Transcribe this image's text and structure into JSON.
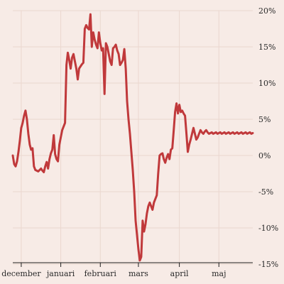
{
  "chart_data": {
    "type": "line",
    "title": "",
    "xlabel": "",
    "ylabel": "",
    "grid": true,
    "y_axis_side": "right",
    "ylim": [
      -15,
      20
    ],
    "xlim": [
      0,
      170
    ],
    "yticks": [
      20,
      15,
      10,
      5,
      0,
      -5,
      -10,
      -15
    ],
    "ytick_labels": [
      "20%",
      "15%",
      "10%",
      "5%",
      "0%",
      "-5%",
      "-10%",
      "-15%"
    ],
    "xticks": [
      {
        "label": "december",
        "x": 6
      },
      {
        "label": "januari",
        "x": 34
      },
      {
        "label": "februari",
        "x": 62
      },
      {
        "label": "mars",
        "x": 89
      },
      {
        "label": "april",
        "x": 118
      },
      {
        "label": "maj",
        "x": 146
      }
    ],
    "series": [
      {
        "color": "#c0393b",
        "x": [
          0,
          1,
          2,
          3,
          4,
          5,
          6,
          7,
          8,
          9,
          10,
          11,
          12,
          13,
          14,
          15,
          16,
          17,
          18,
          19,
          20,
          21,
          22,
          23,
          24,
          25,
          26,
          27,
          28,
          29,
          30,
          31,
          32,
          33,
          34,
          35,
          36,
          37,
          38,
          39,
          40,
          41,
          42,
          43,
          44,
          45,
          46,
          47,
          48,
          49,
          50,
          51,
          52,
          53,
          54,
          55,
          56,
          57,
          58,
          59,
          60,
          61,
          62,
          63,
          64,
          65,
          66,
          67,
          68,
          69,
          70,
          71,
          72,
          73,
          74,
          75,
          76,
          77,
          78,
          79,
          80,
          81,
          82,
          83,
          84,
          85,
          86,
          87,
          88,
          89,
          90,
          91,
          92,
          93,
          94,
          95,
          96,
          97,
          98,
          99,
          100,
          101,
          102,
          103,
          104,
          105,
          106,
          107,
          108,
          109,
          110,
          111,
          112,
          113,
          114,
          115,
          116,
          117,
          118,
          119,
          120,
          121,
          122,
          123,
          124,
          125,
          126,
          127,
          128,
          129,
          130,
          131,
          132,
          133,
          134,
          135,
          136,
          137,
          138,
          139,
          140,
          141,
          142,
          143,
          144,
          145,
          146,
          147,
          148,
          149,
          150,
          151,
          152,
          153,
          154,
          155,
          156,
          157,
          158,
          159,
          160,
          161,
          162,
          163,
          164,
          165,
          166,
          167,
          168,
          169,
          170
        ],
        "values": [
          0.0,
          -1.2,
          -1.5,
          -0.8,
          0.5,
          2.0,
          3.8,
          4.5,
          5.5,
          6.2,
          5.0,
          3.0,
          1.5,
          0.8,
          1.0,
          -1.5,
          -2.0,
          -2.1,
          -2.2,
          -2.0,
          -1.8,
          -2.1,
          -2.3,
          -1.5,
          -0.9,
          -1.8,
          -0.5,
          0.3,
          0.8,
          2.8,
          0.2,
          -0.5,
          -0.8,
          1.5,
          2.5,
          3.5,
          4.0,
          4.5,
          12.5,
          14.2,
          13.2,
          12.0,
          13.5,
          14.0,
          13.0,
          12.0,
          10.5,
          12.0,
          12.3,
          12.6,
          12.8,
          17.5,
          18.0,
          17.6,
          17.4,
          19.5,
          15.0,
          17.0,
          16.0,
          15.3,
          14.8,
          17.0,
          15.5,
          14.5,
          14.8,
          8.5,
          15.5,
          15.0,
          14.0,
          13.0,
          12.5,
          14.8,
          15.0,
          15.3,
          14.5,
          14.0,
          12.5,
          12.8,
          13.2,
          14.7,
          12.0,
          7.5,
          5.0,
          3.0,
          0.5,
          -2.0,
          -5.0,
          -9.0,
          -11.0,
          -13.0,
          -14.5,
          -14.0,
          -9.0,
          -10.5,
          -9.5,
          -8.0,
          -7.0,
          -6.5,
          -7.0,
          -7.5,
          -6.5,
          -6.0,
          -5.5,
          -2.5,
          0.0,
          0.2,
          0.3,
          -0.5,
          -1.0,
          -0.3,
          0.2,
          -0.5,
          0.8,
          1.0,
          3.5,
          6.0,
          7.2,
          5.8,
          7.0,
          6.0,
          6.2,
          5.8,
          5.5,
          3.0,
          0.5,
          1.5,
          2.2,
          3.0,
          3.8,
          3.0,
          2.2,
          2.5,
          3.0,
          3.5,
          3.2,
          3.0,
          3.3,
          3.5,
          3.2,
          3.0,
          3.1,
          3.2,
          3.0,
          3.1,
          3.2,
          3.0,
          3.1,
          3.2,
          3.0,
          3.1,
          3.2,
          3.0,
          3.1,
          3.2,
          3.0,
          3.1,
          3.2,
          3.0,
          3.1,
          3.2,
          3.0,
          3.1,
          3.2,
          3.0,
          3.1,
          3.2,
          3.0,
          3.1,
          3.2,
          3.0,
          3.1
        ]
      }
    ]
  }
}
